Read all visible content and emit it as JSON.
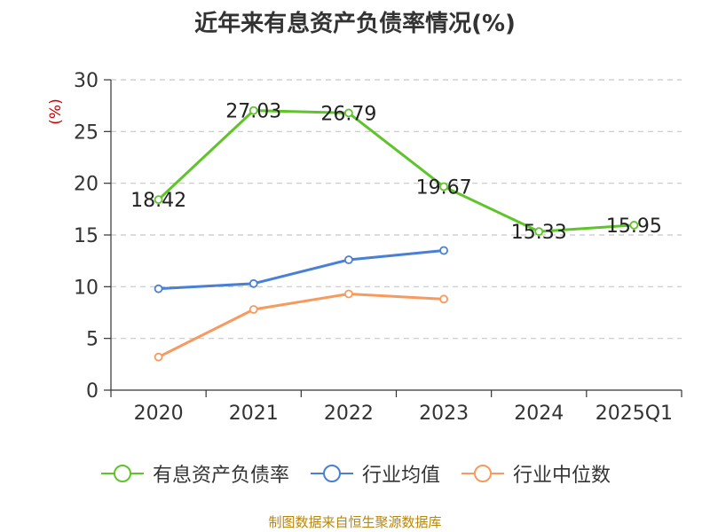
{
  "chart_data": {
    "type": "line",
    "title": "近年来有息资产负债率情况(%)",
    "ylabel": "(%)",
    "xlabel": "",
    "categories": [
      "2020",
      "2021",
      "2022",
      "2023",
      "2024",
      "2025Q1"
    ],
    "ylim": [
      0,
      30
    ],
    "yticks": [
      0,
      5,
      10,
      15,
      20,
      25,
      30
    ],
    "grid": true,
    "legend_position": "bottom",
    "series": [
      {
        "name": "有息资产负债率",
        "color": "#5ec42a",
        "values": [
          18.42,
          27.03,
          26.79,
          19.67,
          15.33,
          15.95
        ],
        "labels": [
          "18.42",
          "27.03",
          "26.79",
          "19.67",
          "15.33",
          "15.95"
        ]
      },
      {
        "name": "行业均值",
        "color": "#4a7fd6",
        "values": [
          9.8,
          10.3,
          12.6,
          13.5,
          null,
          null
        ]
      },
      {
        "name": "行业中位数",
        "color": "#f79a5e",
        "values": [
          3.2,
          7.8,
          9.3,
          8.8,
          null,
          null
        ]
      }
    ]
  },
  "source": "制图数据来自恒生聚源数据库"
}
